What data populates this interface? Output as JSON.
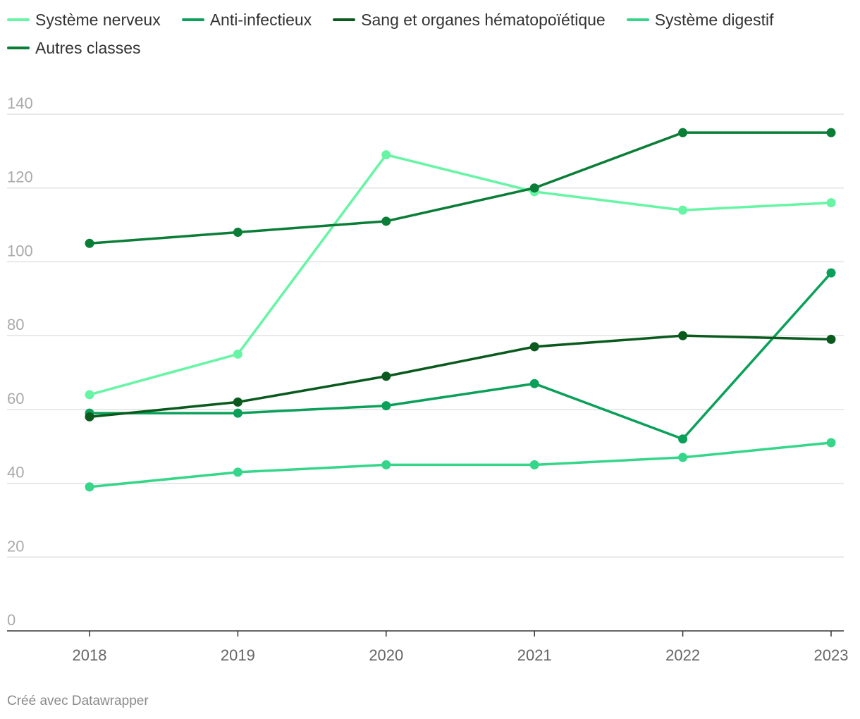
{
  "chart_data": {
    "type": "line",
    "title": "",
    "xlabel": "",
    "ylabel": "",
    "x": [
      "2018",
      "2019",
      "2020",
      "2021",
      "2022",
      "2023"
    ],
    "ylim": [
      0,
      140
    ],
    "yticks": [
      "0",
      "20",
      "40",
      "60",
      "80",
      "100",
      "120",
      "140"
    ],
    "grid": true,
    "legend_position": "top-left",
    "series": [
      {
        "name": "Système nerveux",
        "color": "#66f5a5",
        "values": [
          64,
          75,
          129,
          119,
          114,
          116
        ]
      },
      {
        "name": "Anti-infectieux",
        "color": "#0aa05a",
        "values": [
          59,
          59,
          61,
          67,
          52,
          97
        ]
      },
      {
        "name": "Sang et organes hématopoïétique",
        "color": "#0a5a1e",
        "values": [
          58,
          62,
          69,
          77,
          80,
          79
        ]
      },
      {
        "name": "Système digestif",
        "color": "#35d68a",
        "values": [
          39,
          43,
          45,
          45,
          47,
          51
        ]
      },
      {
        "name": "Autres classes",
        "color": "#0a7d37",
        "values": [
          105,
          108,
          111,
          120,
          135,
          135
        ]
      }
    ]
  },
  "footer": {
    "credit": "Créé avec Datawrapper"
  }
}
